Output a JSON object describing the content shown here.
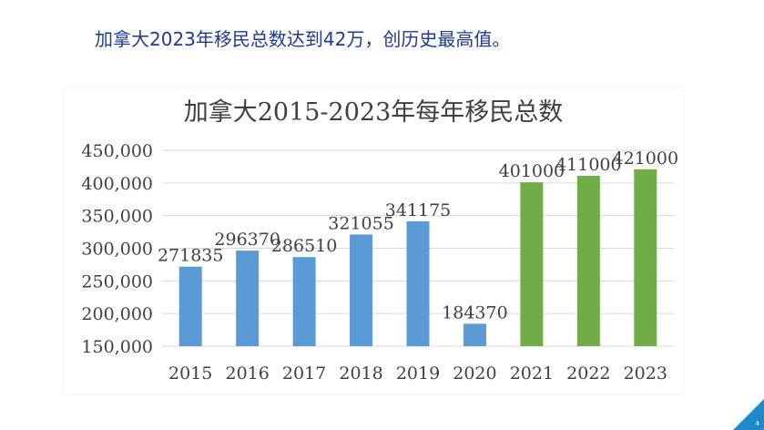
{
  "slide": {
    "headline": "加拿大2023年移民总数达到42万，创历史最高值。",
    "page_number": "4"
  },
  "colors": {
    "headline": "#1f3a93",
    "bar_blue": "#5b9bd5",
    "bar_green": "#70ad47",
    "grid": "#d9d9d9",
    "accent": "#1f8ac9"
  },
  "chart_data": {
    "type": "bar",
    "title": "加拿大2015-2023年每年移民总数",
    "xlabel": "",
    "ylabel": "",
    "categories": [
      "2015",
      "2016",
      "2017",
      "2018",
      "2019",
      "2020",
      "2021",
      "2022",
      "2023"
    ],
    "values": [
      271835,
      296370,
      286510,
      321055,
      341175,
      184370,
      401000,
      411000,
      421000
    ],
    "value_labels": [
      "271835",
      "296370",
      "286510",
      "321055",
      "341175",
      "184370",
      "401000",
      "411000",
      "421000"
    ],
    "bar_colors": [
      "#5b9bd5",
      "#5b9bd5",
      "#5b9bd5",
      "#5b9bd5",
      "#5b9bd5",
      "#5b9bd5",
      "#70ad47",
      "#70ad47",
      "#70ad47"
    ],
    "ylim": [
      150000,
      450000
    ],
    "yticks": [
      150000,
      200000,
      250000,
      300000,
      350000,
      400000,
      450000
    ],
    "ytick_labels": [
      "150,000",
      "200,000",
      "250,000",
      "300,000",
      "350,000",
      "400,000",
      "450,000"
    ],
    "grid": true,
    "legend": "none"
  }
}
